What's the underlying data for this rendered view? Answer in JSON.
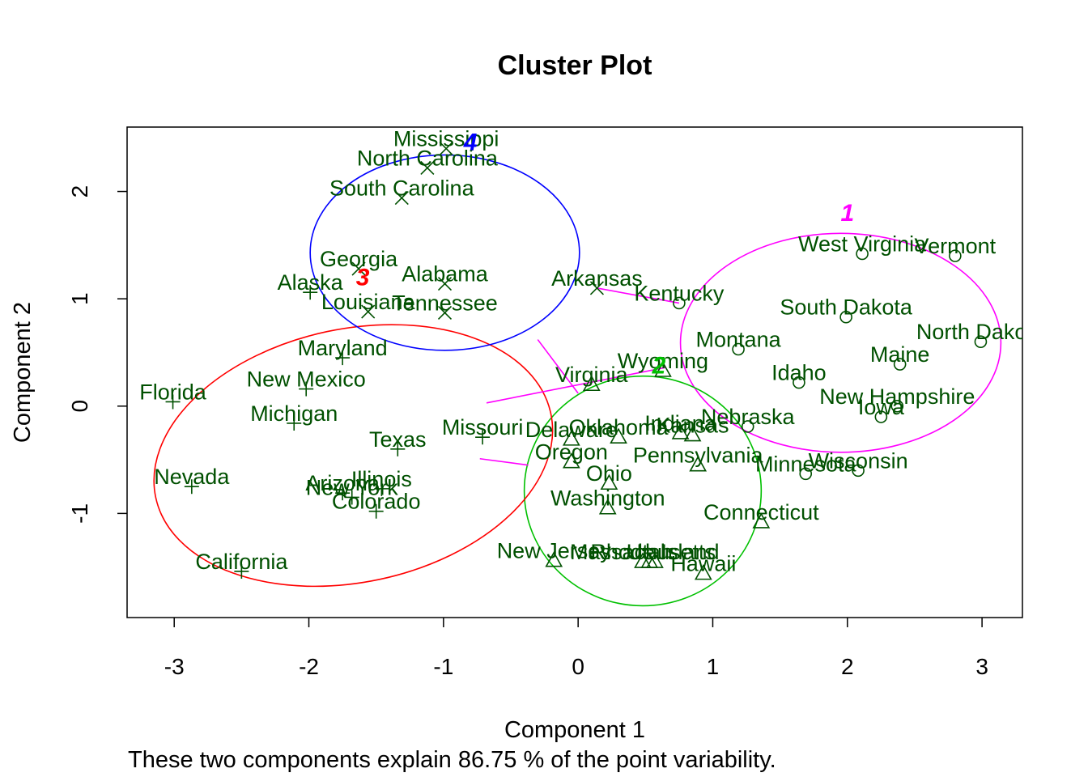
{
  "chart_data": {
    "type": "scatter",
    "title": "Cluster Plot",
    "xlabel": "Component 1",
    "ylabel": "Component 2",
    "subtitle": "These two components explain 86.75 % of the point variability.",
    "xlim": [
      -3.35,
      3.3
    ],
    "ylim": [
      -1.97,
      2.6
    ],
    "xticks": [
      -3,
      -2,
      -1,
      0,
      1,
      2,
      3
    ],
    "yticks": [
      -1,
      0,
      1,
      2
    ],
    "grid": false,
    "legend": "none",
    "point_color": "#005000",
    "clusters": [
      {
        "id": "1",
        "color": "#ff00ff",
        "marker": "circle",
        "center": [
          1.95,
          0.59
        ],
        "rx": 1.19,
        "ry": 1.02,
        "label_at": [
          2.0,
          1.8
        ]
      },
      {
        "id": "2",
        "color": "#00c000",
        "marker": "triangle",
        "center": [
          0.48,
          -0.79
        ],
        "rx": 0.88,
        "ry": 1.07,
        "label_at": [
          0.6,
          0.38
        ]
      },
      {
        "id": "3",
        "color": "#ff0000",
        "marker": "plus",
        "center": [
          -1.67,
          -0.46
        ],
        "rx": 1.5,
        "ry": 1.18,
        "angle": -12,
        "label_at": [
          -1.6,
          1.2
        ]
      },
      {
        "id": "4",
        "color": "#0000ff",
        "marker": "cross",
        "center": [
          -0.99,
          1.43
        ],
        "rx": 1.0,
        "ry": 0.91,
        "label_at": [
          -0.8,
          2.46
        ]
      }
    ],
    "links": [
      {
        "from": [
          0.14,
          1.1
        ],
        "to": [
          0.75,
          0.96
        ],
        "color": "#ff00ff"
      },
      {
        "from": [
          -0.3,
          0.62
        ],
        "to": [
          0.0,
          0.12
        ],
        "color": "#ff00ff"
      },
      {
        "from": [
          -0.68,
          0.03
        ],
        "to": [
          0.65,
          0.36
        ],
        "color": "#ff00ff"
      },
      {
        "from": [
          -0.73,
          -0.49
        ],
        "to": [
          -0.37,
          -0.55
        ],
        "color": "#ff00ff"
      }
    ],
    "points": [
      {
        "name": "West Virginia",
        "x": 2.11,
        "y": 1.42,
        "cluster": "1"
      },
      {
        "name": "Vermont",
        "x": 2.8,
        "y": 1.4,
        "cluster": "1"
      },
      {
        "name": "Kentucky",
        "x": 0.75,
        "y": 0.96,
        "cluster": "1"
      },
      {
        "name": "South Dakota",
        "x": 1.99,
        "y": 0.83,
        "cluster": "1"
      },
      {
        "name": "North Dakota",
        "x": 2.99,
        "y": 0.6,
        "cluster": "1"
      },
      {
        "name": "Montana",
        "x": 1.19,
        "y": 0.53,
        "cluster": "1"
      },
      {
        "name": "Maine",
        "x": 2.39,
        "y": 0.39,
        "cluster": "1"
      },
      {
        "name": "Idaho",
        "x": 1.64,
        "y": 0.22,
        "cluster": "1"
      },
      {
        "name": "New Hampshire",
        "x": 2.37,
        "y": 0.0,
        "cluster": "1"
      },
      {
        "name": "Iowa",
        "x": 2.25,
        "y": -0.1,
        "cluster": "1"
      },
      {
        "name": "Nebraska",
        "x": 1.26,
        "y": -0.19,
        "cluster": "1"
      },
      {
        "name": "Wisconsin",
        "x": 2.08,
        "y": -0.6,
        "cluster": "1"
      },
      {
        "name": "Minnesota",
        "x": 1.69,
        "y": -0.63,
        "cluster": "1"
      },
      {
        "name": "Wyoming",
        "x": 0.63,
        "y": 0.33,
        "cluster": "2"
      },
      {
        "name": "Virginia",
        "x": 0.1,
        "y": 0.2,
        "cluster": "2"
      },
      {
        "name": "Indiana",
        "x": 0.76,
        "y": -0.25,
        "cluster": "2"
      },
      {
        "name": "Kansas",
        "x": 0.85,
        "y": -0.27,
        "cluster": "2"
      },
      {
        "name": "Oklahoma",
        "x": 0.3,
        "y": -0.29,
        "cluster": "2"
      },
      {
        "name": "Delaware",
        "x": -0.05,
        "y": -0.31,
        "cluster": "2"
      },
      {
        "name": "Oregon",
        "x": -0.05,
        "y": -0.52,
        "cluster": "2"
      },
      {
        "name": "Pennsylvania",
        "x": 0.89,
        "y": -0.55,
        "cluster": "2"
      },
      {
        "name": "Ohio",
        "x": 0.23,
        "y": -0.72,
        "cluster": "2"
      },
      {
        "name": "Washington",
        "x": 0.22,
        "y": -0.95,
        "cluster": "2"
      },
      {
        "name": "Connecticut",
        "x": 1.36,
        "y": -1.08,
        "cluster": "2"
      },
      {
        "name": "New Jersey",
        "x": -0.18,
        "y": -1.44,
        "cluster": "2"
      },
      {
        "name": "Massachusetts",
        "x": 0.48,
        "y": -1.45,
        "cluster": "2"
      },
      {
        "name": "Utah",
        "x": 0.53,
        "y": -1.45,
        "cluster": "2"
      },
      {
        "name": "Rhode Island",
        "x": 0.57,
        "y": -1.45,
        "cluster": "2"
      },
      {
        "name": "Hawaii",
        "x": 0.93,
        "y": -1.56,
        "cluster": "2"
      },
      {
        "name": "Alaska",
        "x": -1.99,
        "y": 1.06,
        "cluster": "3"
      },
      {
        "name": "Maryland",
        "x": -1.75,
        "y": 0.45,
        "cluster": "3"
      },
      {
        "name": "New Mexico",
        "x": -2.02,
        "y": 0.16,
        "cluster": "3"
      },
      {
        "name": "Florida",
        "x": -3.01,
        "y": 0.04,
        "cluster": "3"
      },
      {
        "name": "Michigan",
        "x": -2.11,
        "y": -0.16,
        "cluster": "3"
      },
      {
        "name": "Missouri",
        "x": -0.71,
        "y": -0.29,
        "cluster": "3"
      },
      {
        "name": "Texas",
        "x": -1.34,
        "y": -0.4,
        "cluster": "3"
      },
      {
        "name": "Illinois",
        "x": -1.46,
        "y": -0.77,
        "cluster": "3"
      },
      {
        "name": "Arizona",
        "x": -1.75,
        "y": -0.81,
        "cluster": "3"
      },
      {
        "name": "New York",
        "x": -1.68,
        "y": -0.85,
        "cluster": "3"
      },
      {
        "name": "Nevada",
        "x": -2.87,
        "y": -0.75,
        "cluster": "3"
      },
      {
        "name": "Colorado",
        "x": -1.5,
        "y": -0.98,
        "cluster": "3"
      },
      {
        "name": "California",
        "x": -2.5,
        "y": -1.54,
        "cluster": "3"
      },
      {
        "name": "Mississippi",
        "x": -0.98,
        "y": 2.4,
        "cluster": "4"
      },
      {
        "name": "North Carolina",
        "x": -1.12,
        "y": 2.22,
        "cluster": "4"
      },
      {
        "name": "South Carolina",
        "x": -1.31,
        "y": 1.94,
        "cluster": "4"
      },
      {
        "name": "Georgia",
        "x": -1.63,
        "y": 1.28,
        "cluster": "4"
      },
      {
        "name": "Alabama",
        "x": -0.99,
        "y": 1.14,
        "cluster": "4"
      },
      {
        "name": "Arkansas",
        "x": 0.14,
        "y": 1.1,
        "cluster": "4"
      },
      {
        "name": "Louisiana",
        "x": -1.56,
        "y": 0.88,
        "cluster": "4"
      },
      {
        "name": "Tennessee",
        "x": -0.99,
        "y": 0.87,
        "cluster": "4"
      }
    ]
  }
}
